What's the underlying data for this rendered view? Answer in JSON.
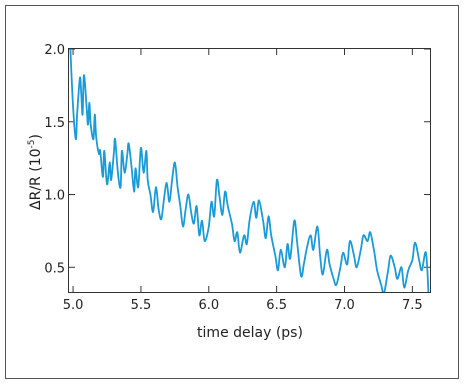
{
  "chart_data": {
    "type": "line",
    "title": "",
    "xlabel": "time delay (ps)",
    "ylabel": "ΔR/R (10",
    "ylabel_exp": "-5",
    "ylabel_close": ")",
    "xlim": [
      4.97,
      7.63
    ],
    "ylim": [
      0.33,
      2.0
    ],
    "xticks": [
      5.0,
      5.5,
      6.0,
      6.5,
      7.0,
      7.5
    ],
    "xtick_labels": [
      "5.0",
      "5.5",
      "6.0",
      "6.5",
      "7.0",
      "7.5"
    ],
    "yticks": [
      0.5,
      1.0,
      1.5,
      2.0
    ],
    "ytick_labels": [
      "0.5",
      "1.0",
      "1.5",
      "2.0"
    ],
    "grid": false,
    "series": [
      {
        "color": "#1a9bd7",
        "x": [
          4.98,
          5.0,
          5.02,
          5.03,
          5.05,
          5.06,
          5.07,
          5.08,
          5.1,
          5.11,
          5.12,
          5.13,
          5.15,
          5.16,
          5.17,
          5.19,
          5.2,
          5.22,
          5.23,
          5.25,
          5.27,
          5.28,
          5.3,
          5.31,
          5.33,
          5.35,
          5.36,
          5.38,
          5.4,
          5.41,
          5.43,
          5.45,
          5.46,
          5.48,
          5.5,
          5.52,
          5.54,
          5.55,
          5.57,
          5.59,
          5.61,
          5.63,
          5.65,
          5.67,
          5.69,
          5.71,
          5.73,
          5.75,
          5.77,
          5.79,
          5.81,
          5.83,
          5.85,
          5.87,
          5.89,
          5.91,
          5.93,
          5.95,
          5.97,
          6.0,
          6.02,
          6.04,
          6.06,
          6.08,
          6.1,
          6.12,
          6.14,
          6.17,
          6.19,
          6.21,
          6.23,
          6.26,
          6.28,
          6.3,
          6.33,
          6.35,
          6.37,
          6.4,
          6.42,
          6.44,
          6.46,
          6.49,
          6.51,
          6.53,
          6.56,
          6.58,
          6.6,
          6.63,
          6.65,
          6.68,
          6.7,
          6.72,
          6.75,
          6.77,
          6.8,
          6.82,
          6.84,
          6.87,
          6.89,
          6.92,
          6.94,
          6.97,
          6.99,
          7.02,
          7.04,
          7.07,
          7.09,
          7.12,
          7.14,
          7.17,
          7.19,
          7.22,
          7.24,
          7.27,
          7.29,
          7.32,
          7.34,
          7.37,
          7.39,
          7.42,
          7.44,
          7.47,
          7.5,
          7.52,
          7.55,
          7.57,
          7.6,
          7.62
        ],
        "y": [
          2.0,
          1.6,
          1.38,
          1.55,
          1.8,
          1.7,
          1.55,
          1.82,
          1.6,
          1.48,
          1.63,
          1.48,
          1.38,
          1.55,
          1.4,
          1.28,
          1.3,
          1.12,
          1.3,
          1.07,
          1.22,
          1.1,
          1.28,
          1.38,
          1.15,
          1.05,
          1.3,
          1.15,
          1.28,
          1.35,
          1.2,
          1.02,
          1.18,
          1.05,
          1.32,
          1.15,
          1.3,
          1.1,
          1.0,
          0.88,
          1.05,
          0.9,
          0.83,
          0.97,
          1.08,
          0.95,
          1.1,
          1.22,
          1.05,
          0.92,
          0.78,
          0.9,
          1.0,
          0.88,
          0.8,
          0.92,
          0.72,
          0.82,
          0.68,
          0.78,
          0.95,
          0.85,
          1.1,
          0.98,
          0.86,
          1.02,
          0.92,
          0.8,
          0.68,
          0.74,
          0.6,
          0.72,
          0.66,
          0.82,
          0.95,
          0.84,
          0.96,
          0.82,
          0.7,
          0.85,
          0.72,
          0.58,
          0.48,
          0.62,
          0.5,
          0.66,
          0.56,
          0.82,
          0.68,
          0.44,
          0.52,
          0.62,
          0.72,
          0.62,
          0.78,
          0.58,
          0.45,
          0.62,
          0.52,
          0.42,
          0.38,
          0.5,
          0.6,
          0.52,
          0.68,
          0.58,
          0.5,
          0.62,
          0.72,
          0.68,
          0.74,
          0.6,
          0.48,
          0.38,
          0.32,
          0.47,
          0.58,
          0.5,
          0.42,
          0.5,
          0.36,
          0.48,
          0.55,
          0.67,
          0.55,
          0.48,
          0.6,
          0.3
        ]
      }
    ]
  }
}
